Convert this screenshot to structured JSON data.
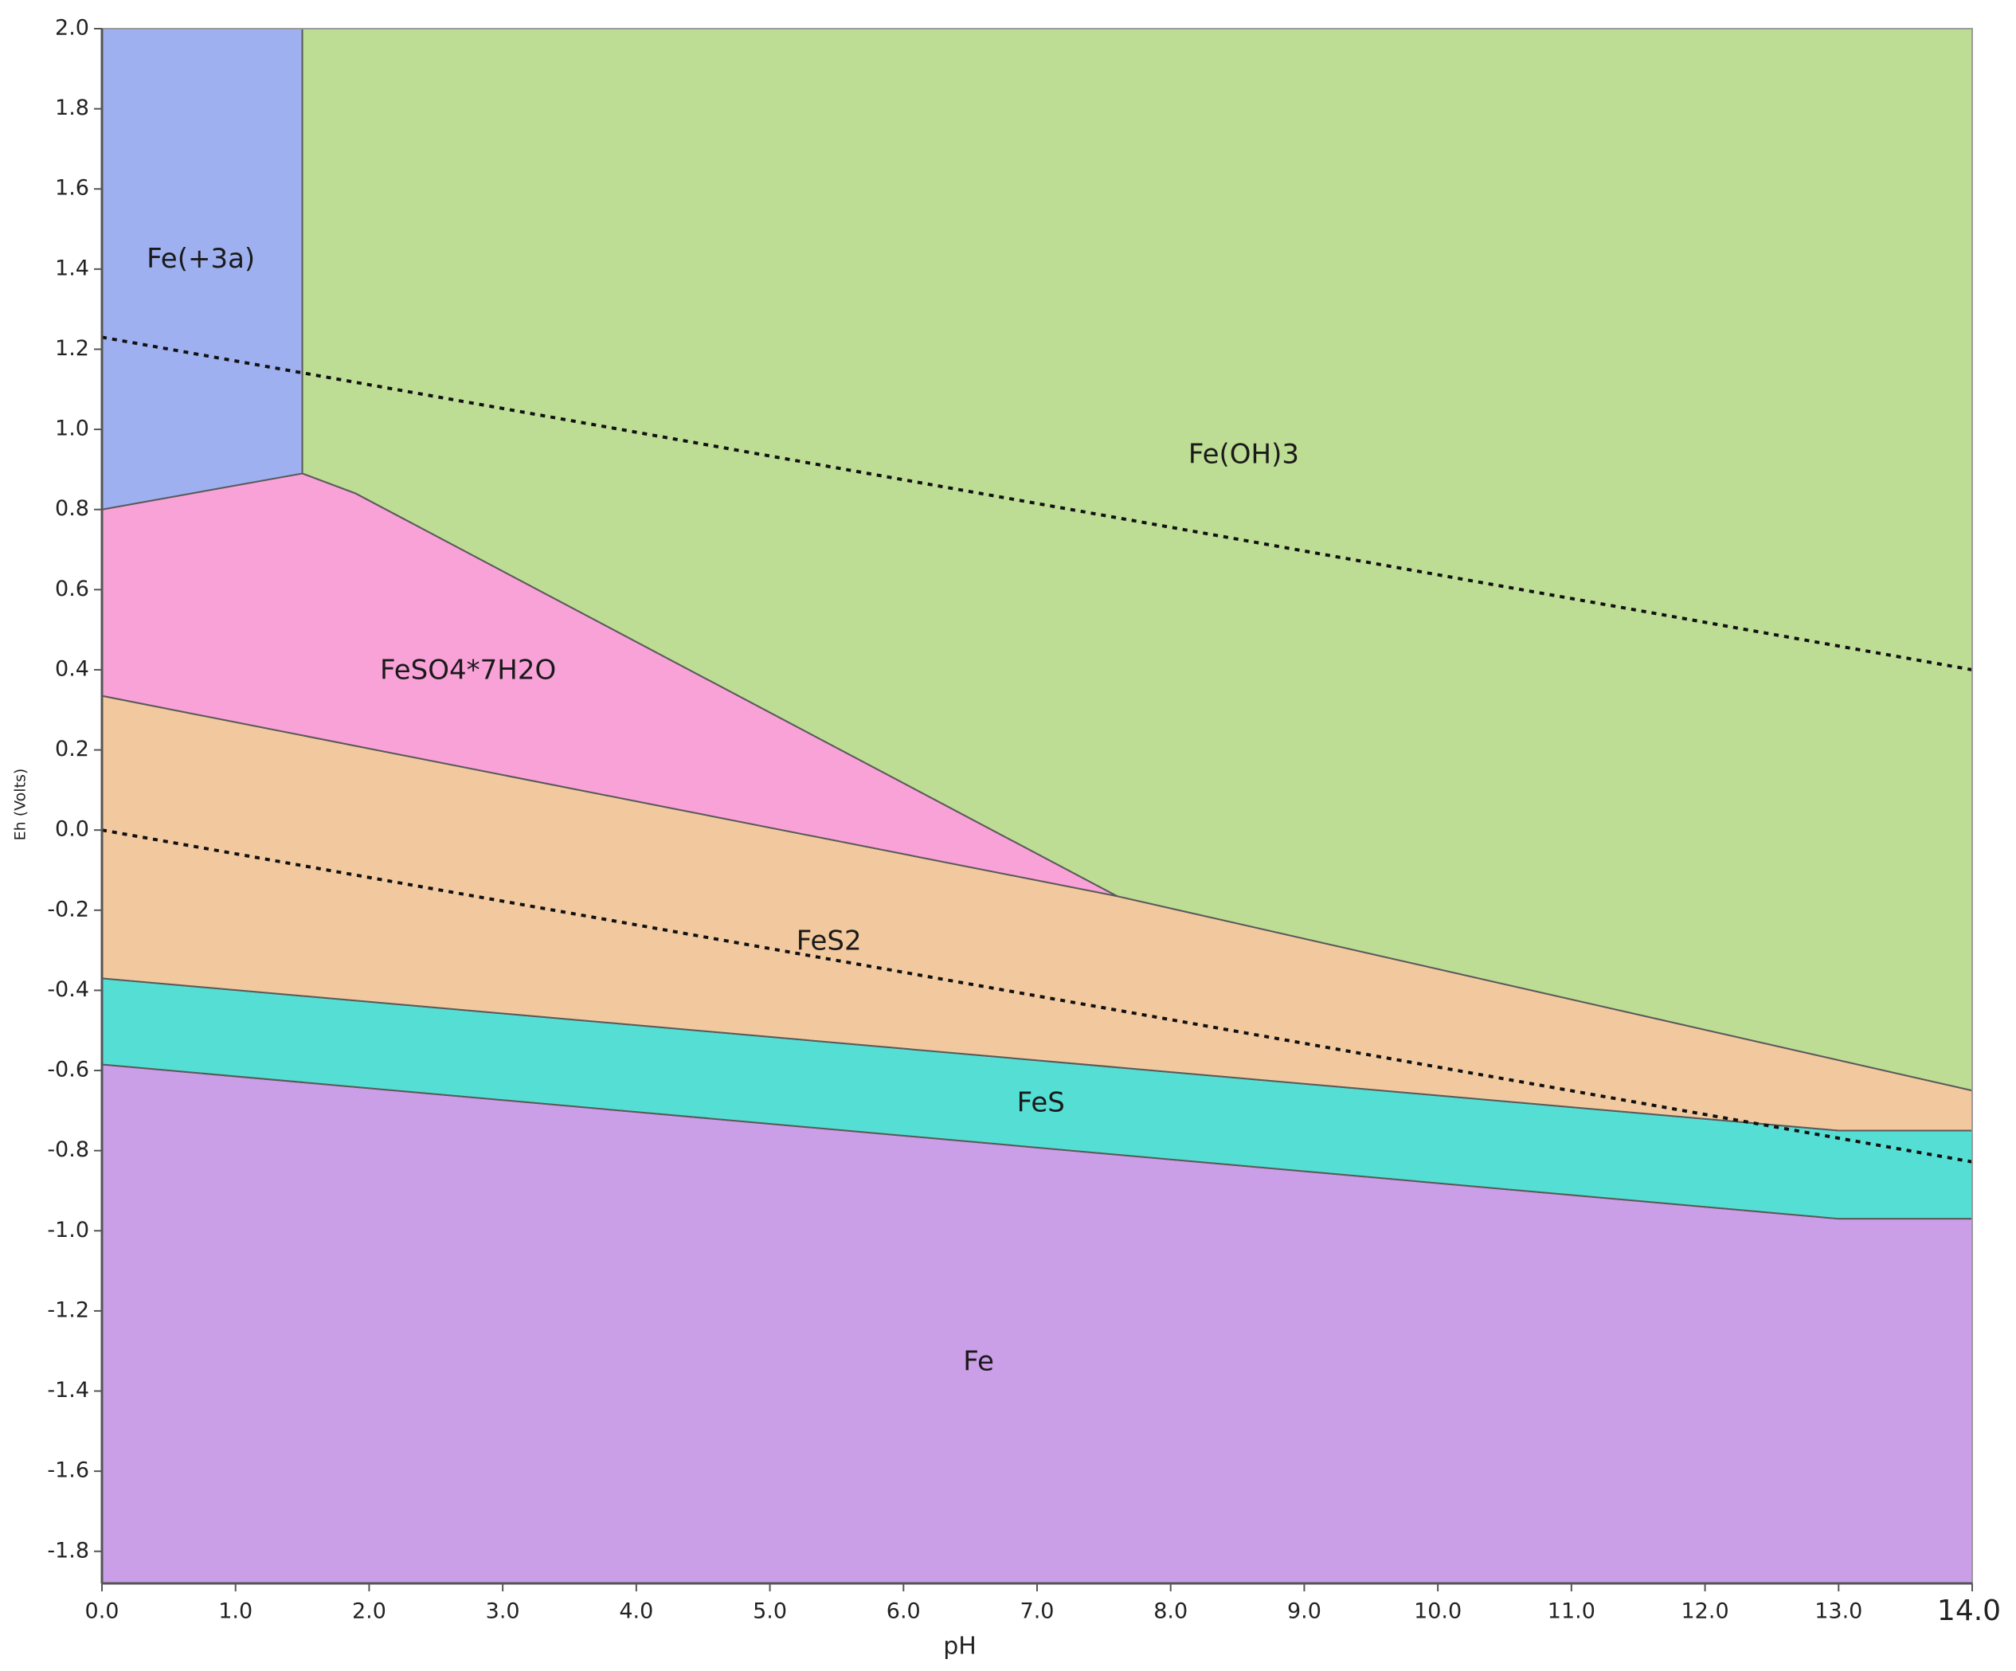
{
  "chart_data": {
    "type": "region",
    "x_label": "pH",
    "y_label": "Eh (Volts)",
    "xlim": [
      0,
      14
    ],
    "ylim": [
      -1.88,
      2.0
    ],
    "xticks": [
      {
        "value": 0,
        "label": "0.0"
      },
      {
        "value": 1,
        "label": "1.0"
      },
      {
        "value": 2,
        "label": "2.0"
      },
      {
        "value": 3,
        "label": "3.0"
      },
      {
        "value": 4,
        "label": "4.0"
      },
      {
        "value": 5,
        "label": "5.0"
      },
      {
        "value": 6,
        "label": "6.0"
      },
      {
        "value": 7,
        "label": "7.0"
      },
      {
        "value": 8,
        "label": "8.0"
      },
      {
        "value": 9,
        "label": "9.0"
      },
      {
        "value": 10,
        "label": "10.0"
      },
      {
        "value": 11,
        "label": "11.0"
      },
      {
        "value": 12,
        "label": "12.0"
      },
      {
        "value": 13,
        "label": "13.0"
      },
      {
        "value": 14,
        "label": "14.0"
      }
    ],
    "yticks": [
      -1.8,
      -1.6,
      -1.4,
      -1.2,
      {
        "value": -1,
        "label": "-1.0"
      },
      -0.8,
      -0.6,
      -0.4,
      -0.2,
      {
        "value": 0,
        "label": "0.0"
      },
      0.2,
      0.4,
      0.6,
      0.8,
      {
        "value": 1,
        "label": "1.0"
      },
      1.2,
      1.4,
      1.6,
      1.8,
      {
        "value": 2,
        "label": "2.0"
      }
    ],
    "regions": [
      {
        "name": "Fe",
        "color": "#cb9ee8",
        "points": [
          [
            0,
            -0.585
          ],
          [
            13,
            -0.97
          ],
          [
            14,
            -0.97
          ],
          [
            14,
            -1.88
          ],
          [
            0,
            -1.88
          ]
        ]
      },
      {
        "name": "FeS",
        "color": "#55dfd4",
        "points": [
          [
            0,
            -0.37
          ],
          [
            13,
            -0.75
          ],
          [
            14,
            -0.75
          ],
          [
            14,
            -0.97
          ],
          [
            13,
            -0.97
          ],
          [
            0,
            -0.585
          ]
        ]
      },
      {
        "name": "FeS2",
        "color": "#f2c99e",
        "points": [
          [
            0,
            0.335
          ],
          [
            7.6,
            -0.165
          ],
          [
            14,
            -0.65
          ],
          [
            14,
            -0.75
          ],
          [
            13,
            -0.75
          ],
          [
            0,
            -0.37
          ]
        ]
      },
      {
        "name": "FeSO4*7H2O",
        "color": "#f9a2d8",
        "points": [
          [
            0,
            0.8
          ],
          [
            1.5,
            0.89
          ],
          [
            1.9,
            0.84
          ],
          [
            7.6,
            -0.165
          ],
          [
            0,
            0.335
          ]
        ]
      },
      {
        "name": "Fe(+3a)",
        "color": "#9fb0f0",
        "points": [
          [
            0,
            2.0
          ],
          [
            1.5,
            2.0
          ],
          [
            1.5,
            0.89
          ],
          [
            0,
            0.8
          ]
        ]
      },
      {
        "name": "Fe(OH)3",
        "color": "#bddc94",
        "points": [
          [
            1.5,
            2.0
          ],
          [
            14,
            2.0
          ],
          [
            14,
            -0.65
          ],
          [
            7.6,
            -0.165
          ],
          [
            1.9,
            0.84
          ],
          [
            1.5,
            0.89
          ]
        ]
      }
    ],
    "lines": [
      {
        "style": "dotted",
        "color": "#111111",
        "points": [
          [
            0,
            1.23
          ],
          [
            14,
            0.4
          ]
        ]
      },
      {
        "style": "dotted",
        "color": "#111111",
        "points": [
          [
            0,
            0
          ],
          [
            14,
            -0.828
          ]
        ]
      }
    ]
  }
}
